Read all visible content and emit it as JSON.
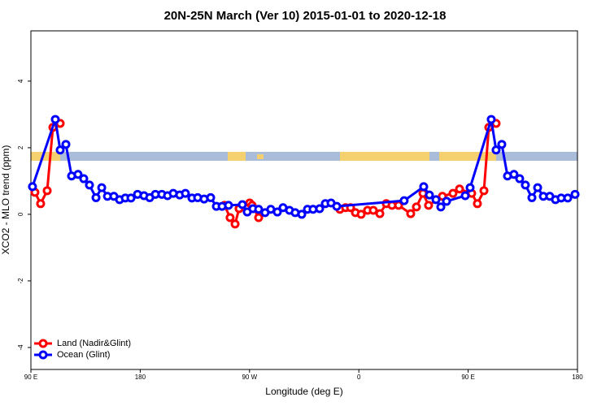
{
  "chart_data": {
    "type": "line",
    "title": "20N-25N March (Ver 10)   2015-01-01 to 2020-12-18",
    "x_label": "Longitude (deg E)",
    "y_label": "XCO2 - MLO trend (ppm)",
    "xlim": [
      90,
      540
    ],
    "ylim": [
      -4.66,
      5.51
    ],
    "xticks": [
      {
        "value": 90,
        "label": "90 E"
      },
      180,
      {
        "value": 270,
        "label": "90 W"
      },
      {
        "value": 360,
        "label": "0"
      },
      {
        "value": 450,
        "label": "90 E"
      },
      {
        "value": 540,
        "label": "180"
      }
    ],
    "yticks": [
      4,
      2,
      0,
      -2,
      -4
    ],
    "legend": "bottom-left",
    "series": [
      {
        "name": "Land (Nadir&Glint)",
        "color": "#ff0000",
        "x": [
          93.3,
          98,
          103.4,
          108.1,
          114.1,
          null,
          249.4,
          254,
          258.1,
          261.4,
          270.1,
          272.1,
          277.5,
          null,
          344.4,
          349.1,
          353.2,
          357.2,
          361.9,
          367.2,
          371.9,
          377.3,
          382.6,
          387.3,
          392.7,
          402.7,
          407.4,
          412.8,
          417.4,
          428.8,
          437.5,
          442.9,
          452.9,
          457.6,
          463,
          467,
          473
        ],
        "values": [
          0.66,
          0.32,
          0.71,
          2.61,
          2.73,
          null,
          0.27,
          -0.1,
          -0.29,
          0.17,
          0.34,
          0.27,
          -0.1,
          null,
          0.15,
          0.2,
          0.2,
          0.05,
          0,
          0.12,
          0.12,
          0.02,
          0.32,
          0.27,
          0.27,
          0.02,
          0.22,
          0.63,
          0.27,
          0.54,
          0.63,
          0.76,
          0.63,
          0.32,
          0.71,
          2.61,
          2.73
        ]
      },
      {
        "name": "Ocean (Glint)",
        "color": "#0000ff",
        "x": [
          91.3,
          110.1,
          114.1,
          118.8,
          123.5,
          128.8,
          133.5,
          138.2,
          143.6,
          148.3,
          153,
          158.3,
          163,
          167.7,
          172.4,
          177.8,
          183.1,
          187.8,
          192.5,
          197.8,
          202.5,
          207.2,
          212.5,
          217.2,
          222.6,
          227.3,
          232.6,
          238,
          242.7,
          247.4,
          252.7,
          264.1,
          268.1,
          272.8,
          277.5,
          282.8,
          287.5,
          292.9,
          297.6,
          302.9,
          307.6,
          313,
          317.7,
          322.3,
          327.7,
          332.4,
          337.1,
          341.8,
          397.3,
          413.4,
          418.1,
          423.5,
          427.5,
          432.2,
          447.6,
          451.6,
          469,
          473,
          477.7,
          482.4,
          487.7,
          492.4,
          497.1,
          502.5,
          507.2,
          511.9,
          517.2,
          521.9,
          526.6,
          532,
          538
        ],
        "values": [
          0.83,
          2.85,
          1.93,
          2.1,
          1.15,
          1.2,
          1.07,
          0.88,
          0.5,
          0.8,
          0.54,
          0.54,
          0.44,
          0.49,
          0.49,
          0.6,
          0.56,
          0.5,
          0.6,
          0.6,
          0.56,
          0.63,
          0.58,
          0.63,
          0.49,
          0.5,
          0.46,
          0.5,
          0.24,
          0.24,
          0.27,
          0.29,
          0.07,
          0.17,
          0.15,
          0.05,
          0.15,
          0.07,
          0.2,
          0.12,
          0.05,
          0,
          0.15,
          0.15,
          0.17,
          0.32,
          0.34,
          0.24,
          0.41,
          0.83,
          0.58,
          0.44,
          0.22,
          0.39,
          0.56,
          0.8,
          2.85,
          1.93,
          2.1,
          1.15,
          1.2,
          1.07,
          0.88,
          0.5,
          0.8,
          0.54,
          0.54,
          0.44,
          0.49,
          0.49,
          0.6
        ]
      }
    ]
  }
}
